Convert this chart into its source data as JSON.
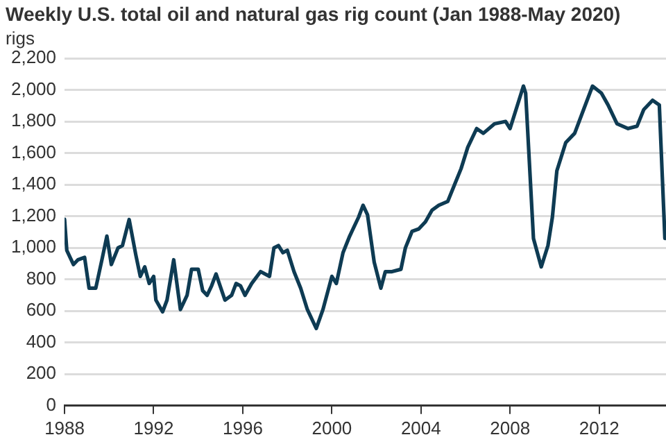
{
  "chart_data": {
    "type": "line",
    "title": "Weekly U.S. total oil and natural gas rig count (Jan 1988-May 2020)",
    "ylabel": "rigs",
    "x": [
      1988.0,
      1988.1,
      1988.4,
      1988.6,
      1988.9,
      1989.1,
      1989.4,
      1989.7,
      1989.9,
      1990.1,
      1990.4,
      1990.6,
      1990.9,
      1991.2,
      1991.4,
      1991.6,
      1991.8,
      1992.0,
      1992.1,
      1992.4,
      1992.6,
      1992.9,
      1993.2,
      1993.5,
      1993.7,
      1994.0,
      1994.2,
      1994.4,
      1994.6,
      1994.8,
      1995.2,
      1995.5,
      1995.7,
      1995.9,
      1996.1,
      1996.4,
      1996.8,
      1997.2,
      1997.4,
      1997.6,
      1997.8,
      1998.0,
      1998.3,
      1998.6,
      1998.9,
      1999.3,
      1999.6,
      2000.0,
      2000.2,
      2000.5,
      2000.8,
      2001.2,
      2001.4,
      2001.6,
      2001.9,
      2002.2,
      2002.4,
      2002.7,
      2003.1,
      2003.3,
      2003.6,
      2003.9,
      2004.2,
      2004.5,
      2004.8,
      2005.2,
      2005.5,
      2005.8,
      2006.1,
      2006.5,
      2006.8,
      2007.3,
      2007.8,
      2008.0,
      2008.4,
      2008.6,
      2008.7,
      2009.05,
      2009.4,
      2009.7,
      2009.9,
      2010.1,
      2010.5,
      2010.9,
      2011.3,
      2011.7,
      2012.1,
      2012.4,
      2012.8,
      2013.3,
      2013.7,
      2014.0,
      2014.4,
      2014.7,
      2014.95
    ],
    "series": [
      {
        "color": "#0e3b53",
        "values": [
          1180,
          984,
          894,
          924,
          939,
          744,
          744,
          939,
          1074,
          894,
          999,
          1014,
          1179,
          954,
          819,
          879,
          774,
          819,
          669,
          594,
          669,
          924,
          609,
          699,
          864,
          864,
          729,
          699,
          759,
          834,
          669,
          699,
          774,
          759,
          699,
          774,
          849,
          819,
          999,
          1014,
          969,
          984,
          849,
          744,
          609,
          489,
          609,
          819,
          774,
          969,
          1074,
          1194,
          1269,
          1209,
          909,
          744,
          849,
          849,
          864,
          999,
          1104,
          1119,
          1164,
          1239,
          1269,
          1293,
          1397,
          1501,
          1636,
          1755,
          1725,
          1785,
          1800,
          1755,
          1934,
          2024,
          1979,
          1059,
          879,
          1014,
          1194,
          1487,
          1666,
          1725,
          1875,
          2024,
          1979,
          1904,
          1785,
          1755,
          1770,
          1875,
          1934,
          1904,
          1059
        ]
      }
    ],
    "xlim": [
      1988,
      2015
    ],
    "xticks": [
      1988,
      1992,
      1996,
      2000,
      2004,
      2008,
      2012
    ],
    "ylim": [
      0,
      2200
    ],
    "yticks": [
      0,
      200,
      400,
      600,
      800,
      {
        "value": 1000,
        "label": "1,000"
      },
      {
        "value": 1200,
        "label": "1,200"
      },
      {
        "value": 1400,
        "label": "1,400"
      },
      {
        "value": 1600,
        "label": "1,600"
      },
      {
        "value": 1800,
        "label": "1,800"
      },
      {
        "value": 2000,
        "label": "2,000"
      },
      {
        "value": 2200,
        "label": "2,200"
      }
    ],
    "grid": "y",
    "legend": false,
    "marker": "none",
    "line_style": "solid"
  }
}
